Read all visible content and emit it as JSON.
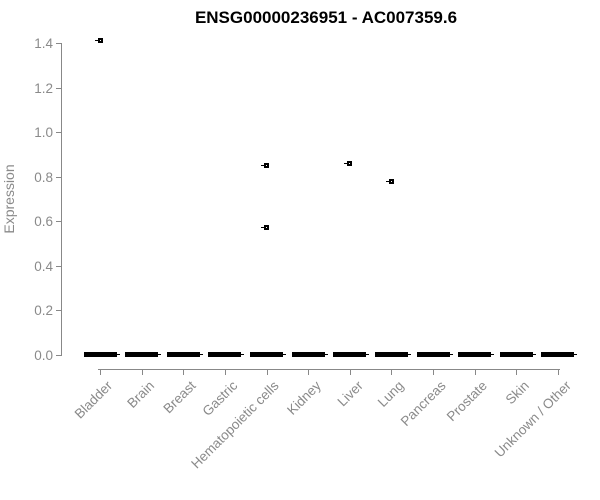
{
  "figure": {
    "title": "ENSG00000236951 - AC007359.6",
    "ylabel": "Expression"
  },
  "colors": {
    "background": "#ffffff",
    "title": "#000000",
    "axis_line": "#888888",
    "tick_label": "#8a8a8a",
    "data": "#000000"
  },
  "chart_data": {
    "type": "boxplot",
    "title": "ENSG00000236951 - AC007359.6",
    "xlabel": "",
    "ylabel": "Expression",
    "ylim": [
      0,
      1.4
    ],
    "yticks": [
      0.0,
      0.2,
      0.4,
      0.6,
      0.8,
      1.0,
      1.2,
      1.4
    ],
    "grid": false,
    "legend": "none",
    "categories": [
      "Bladder",
      "Brain",
      "Breast",
      "Gastric",
      "Hematopoietic cells",
      "Kidney",
      "Liver",
      "Lung",
      "Pancreas",
      "Prostate",
      "Skin",
      "Unknown / Other"
    ],
    "boxes": [
      {
        "category": "Bladder",
        "median": 0,
        "q1": 0,
        "q3": 0,
        "outliers": [
          1.41
        ]
      },
      {
        "category": "Brain",
        "median": 0,
        "q1": 0,
        "q3": 0,
        "outliers": []
      },
      {
        "category": "Breast",
        "median": 0,
        "q1": 0,
        "q3": 0,
        "outliers": []
      },
      {
        "category": "Gastric",
        "median": 0,
        "q1": 0,
        "q3": 0,
        "outliers": []
      },
      {
        "category": "Hematopoietic cells",
        "median": 0,
        "q1": 0,
        "q3": 0,
        "outliers": [
          0.85,
          0.57
        ]
      },
      {
        "category": "Kidney",
        "median": 0,
        "q1": 0,
        "q3": 0,
        "outliers": []
      },
      {
        "category": "Liver",
        "median": 0,
        "q1": 0,
        "q3": 0,
        "outliers": [
          0.86
        ]
      },
      {
        "category": "Lung",
        "median": 0,
        "q1": 0,
        "q3": 0,
        "outliers": [
          0.78
        ]
      },
      {
        "category": "Pancreas",
        "median": 0,
        "q1": 0,
        "q3": 0,
        "outliers": []
      },
      {
        "category": "Prostate",
        "median": 0,
        "q1": 0,
        "q3": 0,
        "outliers": []
      },
      {
        "category": "Skin",
        "median": 0,
        "q1": 0,
        "q3": 0,
        "outliers": []
      },
      {
        "category": "Unknown / Other",
        "median": 0,
        "q1": 0,
        "q3": 0,
        "outliers": []
      }
    ]
  }
}
